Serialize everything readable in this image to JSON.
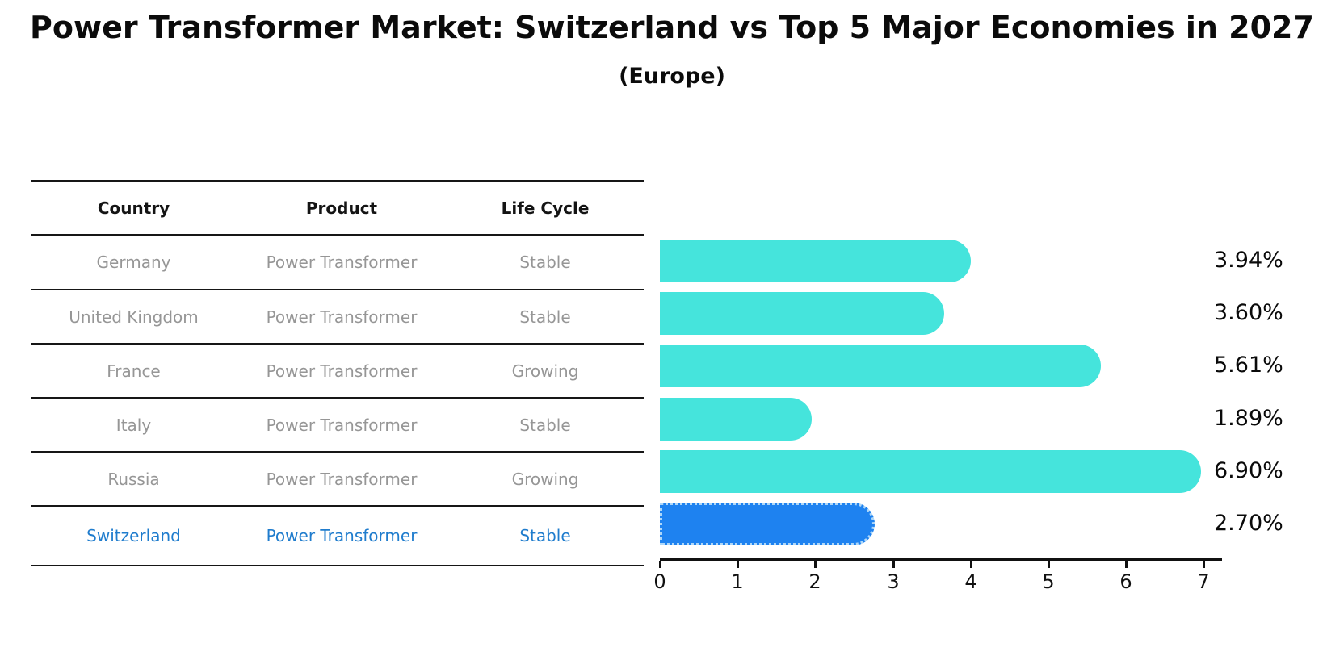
{
  "header": {
    "title": "Power Transformer Market: Switzerland vs Top 5 Major Economies in 2027",
    "subtitle": "(Europe)"
  },
  "table": {
    "columns": [
      "Country",
      "Product",
      "Life Cycle"
    ],
    "rows": [
      {
        "country": "Germany",
        "product": "Power Transformer",
        "life_cycle": "Stable",
        "highlight": false
      },
      {
        "country": "United Kingdom",
        "product": "Power Transformer",
        "life_cycle": "Stable",
        "highlight": false
      },
      {
        "country": "France",
        "product": "Power Transformer",
        "life_cycle": "Growing",
        "highlight": false
      },
      {
        "country": "Italy",
        "product": "Power Transformer",
        "life_cycle": "Stable",
        "highlight": false
      },
      {
        "country": "Russia",
        "product": "Power Transformer",
        "life_cycle": "Growing",
        "highlight": false
      },
      {
        "country": "Switzerland",
        "product": "Power Transformer",
        "life_cycle": "Stable",
        "highlight": true
      }
    ]
  },
  "chart_data": {
    "type": "bar",
    "orientation": "horizontal",
    "title": "Power Transformer Market: Switzerland vs Top 5 Major Economies in 2027",
    "subtitle": "(Europe)",
    "categories": [
      "Germany",
      "United Kingdom",
      "France",
      "Italy",
      "Russia",
      "Switzerland"
    ],
    "values": [
      3.94,
      3.6,
      5.61,
      1.89,
      6.9,
      2.7
    ],
    "value_labels": [
      "3.94%",
      "3.60%",
      "5.61%",
      "1.89%",
      "6.90%",
      "2.70%"
    ],
    "xlabel": "",
    "ylabel": "",
    "xlim": [
      0,
      7.2
    ],
    "xticks": [
      0,
      1,
      2,
      3,
      4,
      5,
      6,
      7
    ],
    "grid": false,
    "legend": null,
    "highlight_index": 5,
    "bar_color": "#45E4DC",
    "highlight_bar_color": "#1E82F0",
    "highlight_text_color": "#1f7ccd",
    "text_color_muted": "#969696",
    "text_color": "#0b0b0b"
  }
}
